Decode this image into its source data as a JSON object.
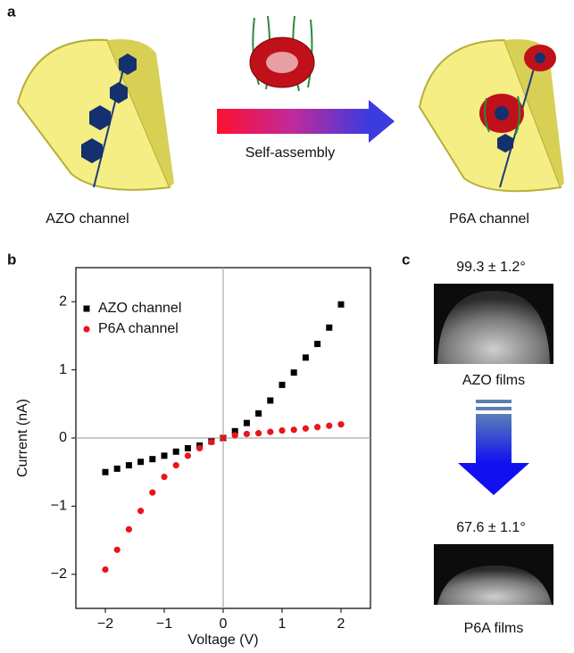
{
  "panels": {
    "a": "a",
    "b": "b",
    "c": "c"
  },
  "panel_a": {
    "left_label": "AZO channel",
    "right_label": "P6A channel",
    "arrow_label": "Self-assembly"
  },
  "panel_c": {
    "top_angle": "99.3 ± 1.2°",
    "top_label": "AZO films",
    "bottom_angle": "67.6 ± 1.1°",
    "bottom_label": "P6A films"
  },
  "chart_data": {
    "type": "scatter",
    "x_label": "Voltage (V)",
    "y_label": "Current (nA)",
    "x": [
      -2,
      -1.8,
      -1.6,
      -1.4,
      -1.2,
      -1,
      -0.8,
      -0.6,
      -0.4,
      -0.2,
      0,
      0.2,
      0.4,
      0.6,
      0.8,
      1,
      1.2,
      1.4,
      1.6,
      1.8,
      2
    ],
    "series": [
      {
        "name": "AZO channel",
        "color": "#000000",
        "marker": "square",
        "values": [
          -0.5,
          -0.45,
          -0.4,
          -0.35,
          -0.31,
          -0.26,
          -0.2,
          -0.15,
          -0.11,
          -0.05,
          0,
          0.1,
          0.22,
          0.36,
          0.55,
          0.78,
          0.96,
          1.18,
          1.38,
          1.62,
          1.96
        ]
      },
      {
        "name": "P6A channel",
        "color": "#e8151b",
        "marker": "circle",
        "values": [
          -1.93,
          -1.64,
          -1.34,
          -1.07,
          -0.8,
          -0.57,
          -0.4,
          -0.26,
          -0.15,
          -0.06,
          0,
          0.04,
          0.06,
          0.07,
          0.09,
          0.11,
          0.12,
          0.14,
          0.16,
          0.18,
          0.2
        ]
      }
    ],
    "xlim": [
      -2.5,
      2.5
    ],
    "ylim": [
      -2.5,
      2.5
    ],
    "xticks": [
      {
        "value": -2,
        "label": "−2"
      },
      {
        "value": -1,
        "label": "−1"
      },
      0,
      1,
      2
    ],
    "yticks": [
      {
        "value": -2,
        "label": "−2"
      },
      {
        "value": -1,
        "label": "−1"
      },
      0,
      1,
      2
    ],
    "legend": "upper left"
  }
}
